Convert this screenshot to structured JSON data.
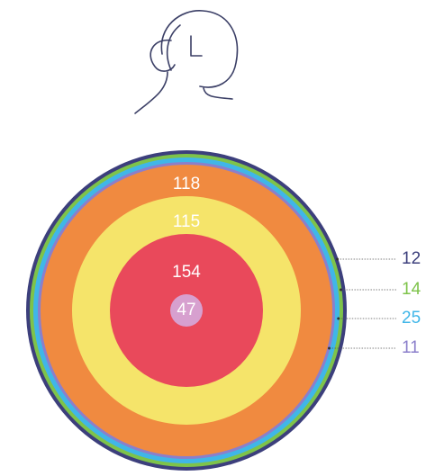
{
  "chart_data": {
    "type": "concentric",
    "values": [
      47,
      154,
      115,
      118,
      11,
      25,
      14,
      12
    ],
    "colors": [
      "#d7a0cf",
      "#e9495b",
      "#f5e46a",
      "#f08a40",
      "#8b7fcb",
      "#40b6e8",
      "#7ec34a",
      "#3c3f7c"
    ]
  }
}
